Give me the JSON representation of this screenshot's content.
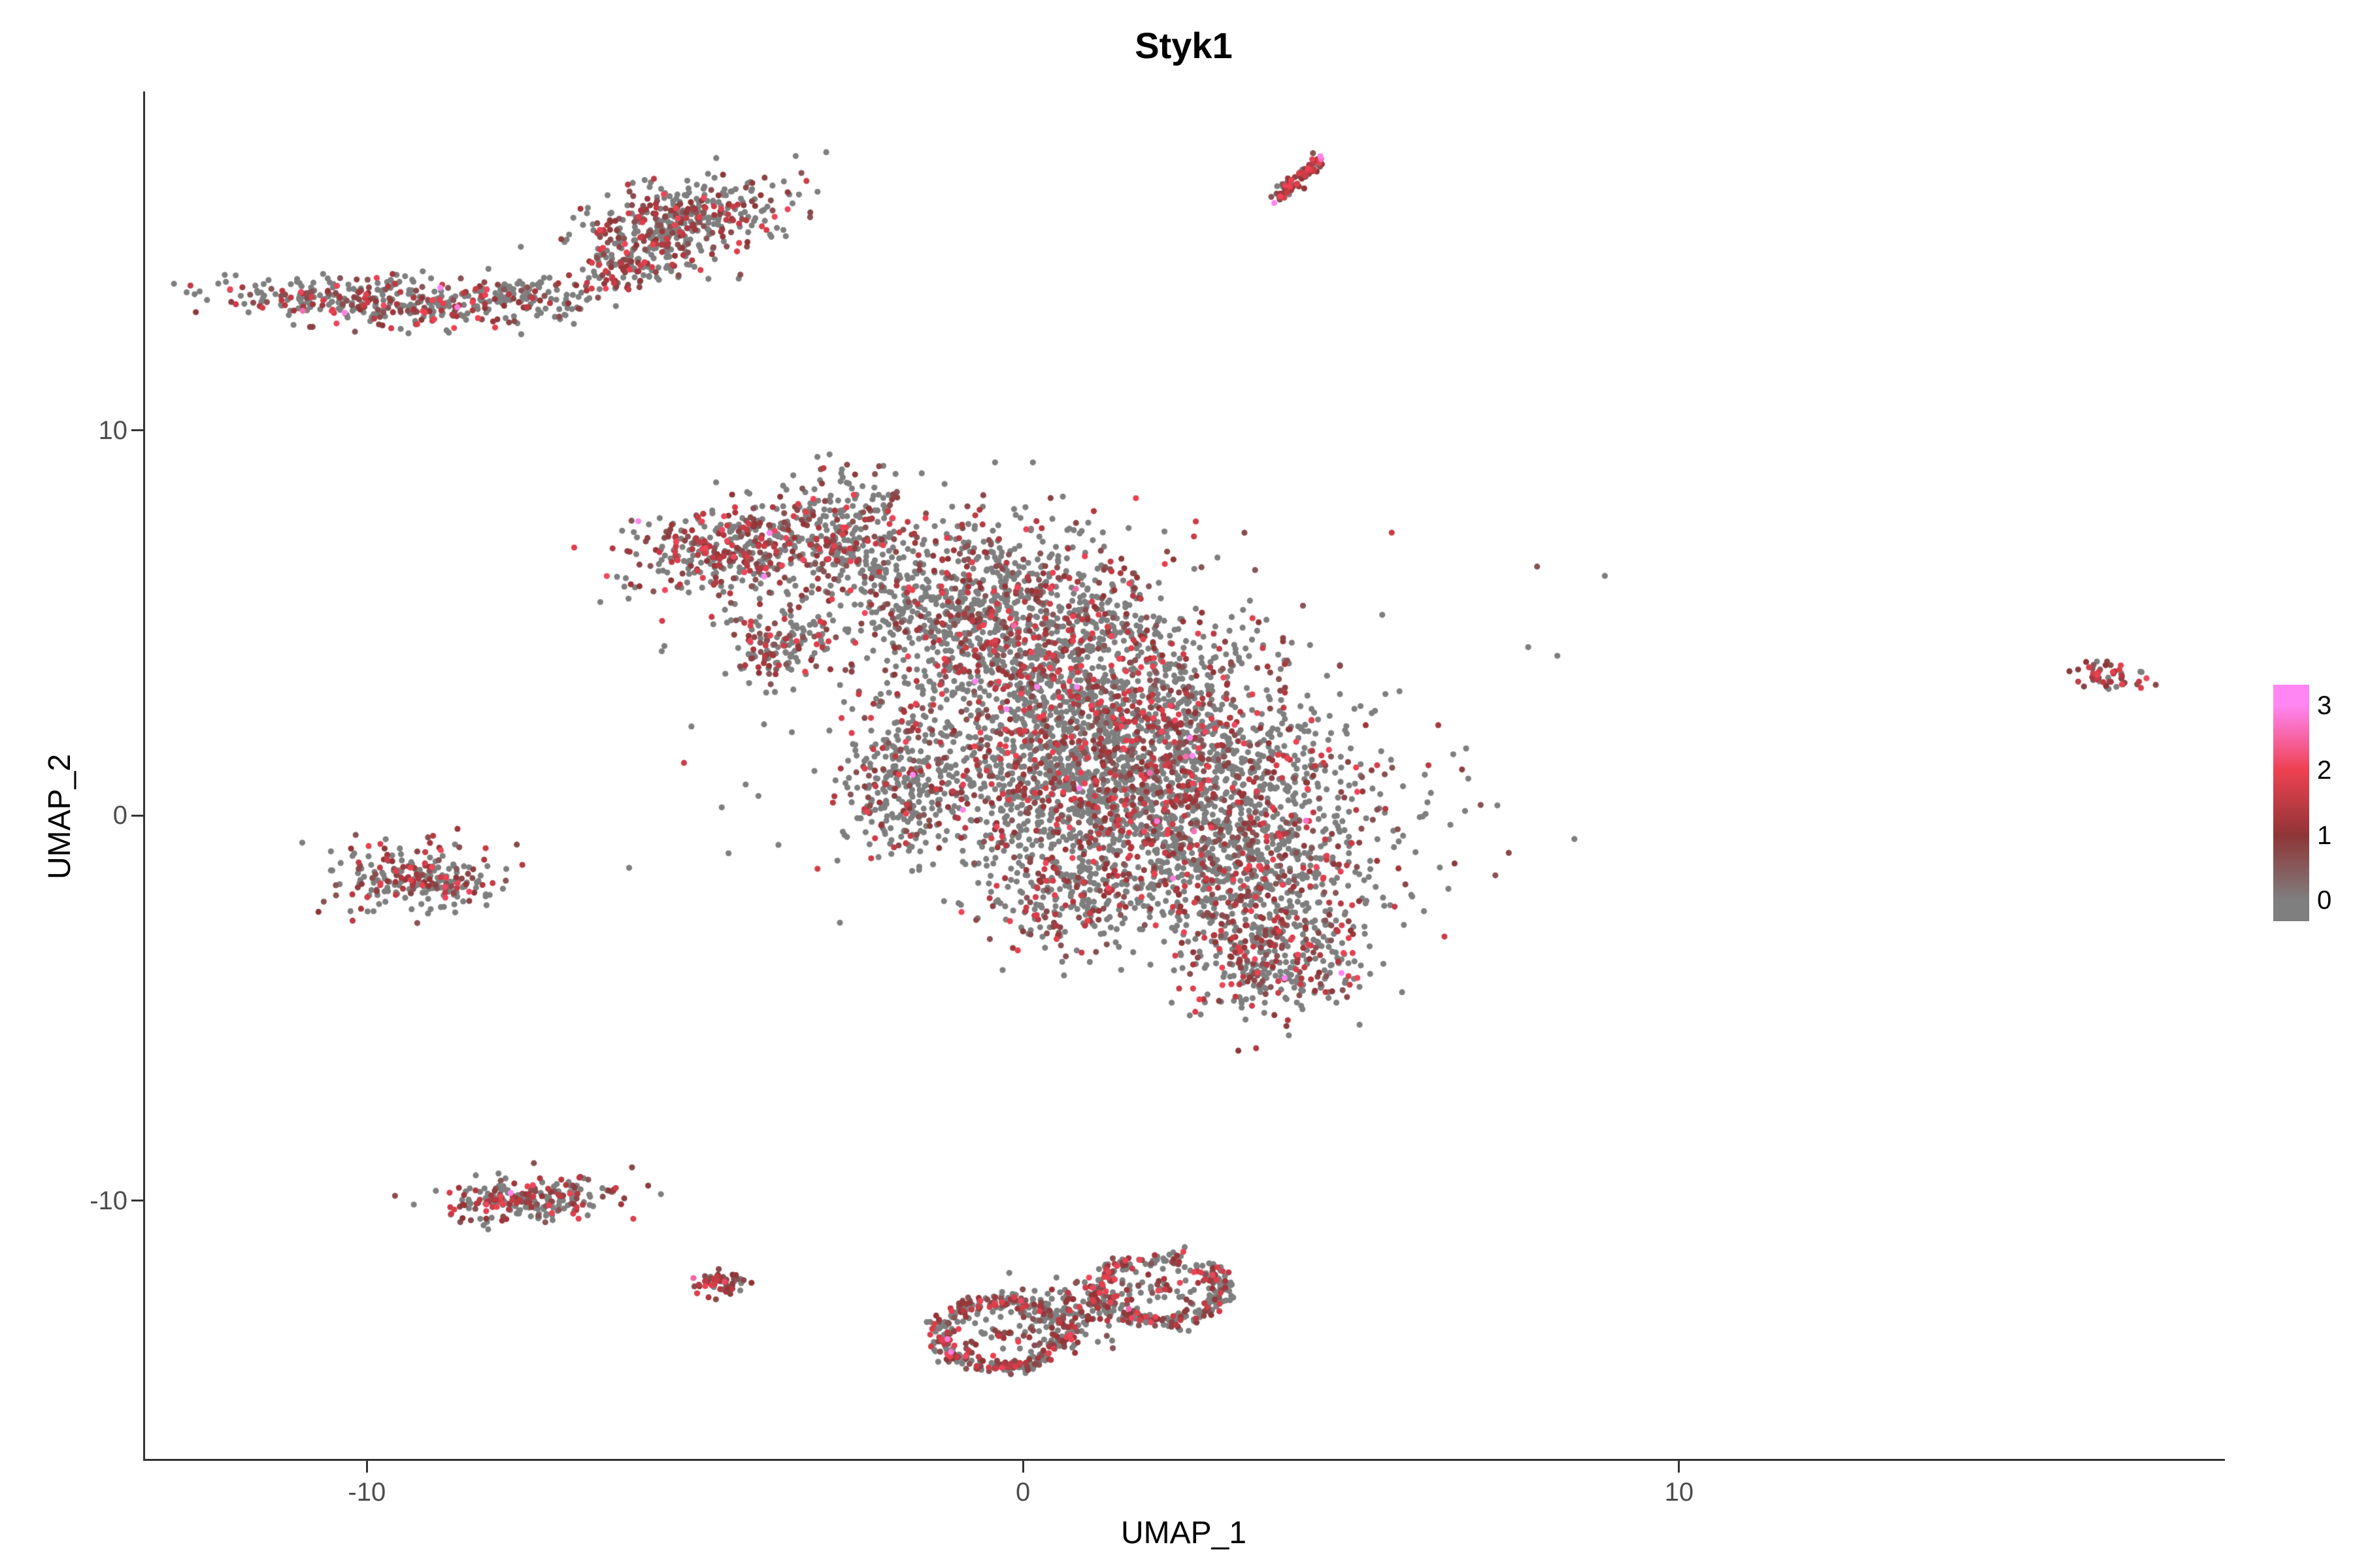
{
  "chart_data": {
    "type": "scatter",
    "title": "Styk1",
    "xlabel": "UMAP_1",
    "ylabel": "UMAP_2",
    "xlim": [
      -13.4,
      18.3
    ],
    "ylim": [
      -16.7,
      18.8
    ],
    "x_ticks": [
      -10,
      0,
      10
    ],
    "y_ticks": [
      -10,
      0,
      10
    ],
    "grid": false,
    "legend_position": "right",
    "point_radius_px": 4.6,
    "color_scale": {
      "stops": [
        {
          "value": 0,
          "color": "#7F7F7F"
        },
        {
          "value": 1,
          "color": "#8F3537"
        },
        {
          "value": 2,
          "color": "#EE4150"
        },
        {
          "value": 3,
          "color": "#FF86F3"
        }
      ],
      "legend_ticks": [
        3,
        2,
        1,
        0
      ],
      "bar_range": [
        -0.32,
        3.32
      ]
    },
    "clusters": [
      {
        "name": "top-left-band",
        "shape": "blob",
        "cx": -9.7,
        "cy": 13.35,
        "sx": 1.35,
        "sy": 0.32,
        "rot": -4,
        "n": 380,
        "expr_frac": 0.4
      },
      {
        "name": "top-left-band-tail",
        "shape": "blob",
        "cx": -7.6,
        "cy": 13.55,
        "sx": 0.55,
        "sy": 0.22,
        "rot": 0,
        "n": 80,
        "expr_frac": 0.3
      },
      {
        "name": "upper-cluster",
        "shape": "blob",
        "cx": -5.2,
        "cy": 15.4,
        "sx": 0.85,
        "sy": 0.5,
        "rot": 25,
        "n": 420,
        "expr_frac": 0.45
      },
      {
        "name": "upper-cluster-tail",
        "shape": "blob",
        "cx": -6.1,
        "cy": 14.2,
        "sx": 0.4,
        "sy": 0.3,
        "rot": 30,
        "n": 90,
        "expr_frac": 0.45
      },
      {
        "name": "top-streak",
        "shape": "streak",
        "cx": 4.2,
        "cy": 16.55,
        "len": 0.62,
        "jitter": 0.07,
        "rot": 57,
        "n": 90,
        "expr_frac": 0.85
      },
      {
        "name": "arm-upper-left",
        "shape": "blob",
        "cx": -4.35,
        "cy": 6.9,
        "sx": 0.85,
        "sy": 0.55,
        "rot": 15,
        "n": 420,
        "expr_frac": 0.5
      },
      {
        "name": "arm-small",
        "shape": "blob",
        "cx": -3.75,
        "cy": 4.4,
        "sx": 0.38,
        "sy": 0.45,
        "rot": 0,
        "n": 140,
        "expr_frac": 0.5
      },
      {
        "name": "bridge",
        "shape": "blob",
        "cx": -2.65,
        "cy": 7.4,
        "sx": 0.45,
        "sy": 0.85,
        "rot": 0,
        "n": 220,
        "expr_frac": 0.35
      },
      {
        "name": "main-1",
        "shape": "blob",
        "cx": -0.6,
        "cy": 5.4,
        "sx": 1.3,
        "sy": 1.15,
        "rot": -30,
        "n": 900,
        "expr_frac": 0.32
      },
      {
        "name": "main-2",
        "shape": "blob",
        "cx": 1.0,
        "cy": 3.2,
        "sx": 1.6,
        "sy": 1.25,
        "rot": -30,
        "n": 1100,
        "expr_frac": 0.32
      },
      {
        "name": "main-3",
        "shape": "blob",
        "cx": 2.3,
        "cy": 1.0,
        "sx": 1.6,
        "sy": 1.25,
        "rot": -30,
        "n": 1100,
        "expr_frac": 0.32
      },
      {
        "name": "main-4",
        "shape": "blob",
        "cx": 0.9,
        "cy": 0.4,
        "sx": 1.35,
        "sy": 1.05,
        "rot": -20,
        "n": 700,
        "expr_frac": 0.32
      },
      {
        "name": "main-left-edge",
        "shape": "blob",
        "cx": -1.85,
        "cy": 0.9,
        "sx": 0.5,
        "sy": 1.0,
        "rot": 0,
        "n": 260,
        "expr_frac": 0.3
      },
      {
        "name": "main-right",
        "shape": "blob",
        "cx": 3.4,
        "cy": -1.4,
        "sx": 1.05,
        "sy": 0.95,
        "rot": -20,
        "n": 520,
        "expr_frac": 0.34
      },
      {
        "name": "main-bottom",
        "shape": "blob",
        "cx": 3.8,
        "cy": -3.6,
        "sx": 0.7,
        "sy": 0.75,
        "rot": 0,
        "n": 360,
        "expr_frac": 0.38
      },
      {
        "name": "main-bottom-left",
        "shape": "blob",
        "cx": 0.7,
        "cy": -2.1,
        "sx": 0.7,
        "sy": 0.75,
        "rot": 0,
        "n": 260,
        "expr_frac": 0.32
      },
      {
        "name": "main-halo",
        "shape": "blob",
        "cx": 0.8,
        "cy": 2.0,
        "sx": 3.2,
        "sy": 3.0,
        "rot": -25,
        "n": 130,
        "expr_frac": 0.25
      },
      {
        "name": "left-cluster",
        "shape": "blob",
        "cx": -9.2,
        "cy": -1.6,
        "sx": 0.6,
        "sy": 0.4,
        "rot": -10,
        "n": 240,
        "expr_frac": 0.4
      },
      {
        "name": "bottom-left-band",
        "shape": "blob",
        "cx": -7.5,
        "cy": -9.95,
        "sx": 0.7,
        "sy": 0.28,
        "rot": 8,
        "n": 230,
        "expr_frac": 0.5
      },
      {
        "name": "tiny-cluster",
        "shape": "blob",
        "cx": -4.55,
        "cy": -12.15,
        "sx": 0.18,
        "sy": 0.18,
        "rot": 0,
        "n": 55,
        "expr_frac": 0.7
      },
      {
        "name": "bottom-ring-left",
        "shape": "ring",
        "cx": -0.35,
        "cy": -13.45,
        "sx": 0.95,
        "sy": 0.85,
        "rot": 0,
        "n": 380,
        "expr_frac": 0.45
      },
      {
        "name": "bottom-ring-right",
        "shape": "ring",
        "cx": 2.1,
        "cy": -12.3,
        "sx": 0.95,
        "sy": 0.8,
        "rot": 0,
        "n": 340,
        "expr_frac": 0.45
      },
      {
        "name": "bottom-fill",
        "shape": "blob",
        "cx": 0.9,
        "cy": -12.9,
        "sx": 0.5,
        "sy": 0.45,
        "rot": 0,
        "n": 120,
        "expr_frac": 0.4
      },
      {
        "name": "far-right-cluster",
        "shape": "blob",
        "cx": 16.6,
        "cy": 3.6,
        "sx": 0.28,
        "sy": 0.16,
        "rot": -20,
        "n": 50,
        "expr_frac": 0.8
      }
    ]
  },
  "style": {
    "background": "#FFFFFF",
    "axis_color": "#333333",
    "tick_text_color": "#4D4D4D",
    "title_color": "#000000",
    "zero_expression_color": "#7F7F7F"
  }
}
